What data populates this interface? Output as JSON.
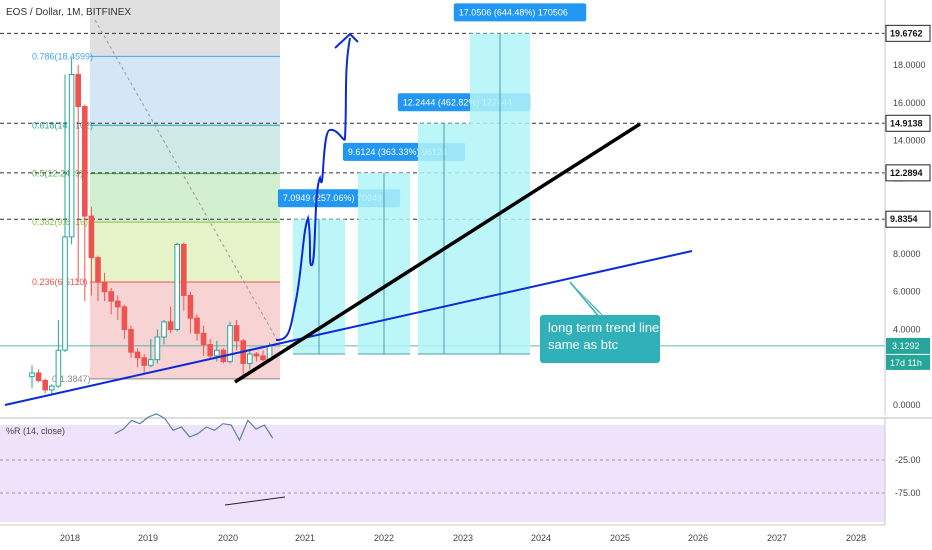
{
  "header": {
    "title": "EOS / Dollar, 1M, BITFINEX"
  },
  "indicator": {
    "label": "%R (14, close)",
    "levels": [
      "-25.00",
      "-75.00"
    ]
  },
  "colors": {
    "up": "#26a69a",
    "down": "#ef5350",
    "trend_blue": "#0b2bd6",
    "trend_black": "#000000",
    "tag_blue": "#2196f3",
    "cyan_box": "#b2f5f8",
    "note_bg": "#30b0b8",
    "wr_bg": "#efe3fb"
  },
  "annotation": {
    "line1": "long term trend line",
    "line2": "same as btc"
  },
  "price_tags": {
    "current": "3.1292",
    "countdown": "17d 11h"
  },
  "chart_data": {
    "type": "candlestick",
    "title": "EOS / Dollar, 1M, BITFINEX",
    "x_axis": {
      "type": "time",
      "tick_labels": [
        "2018",
        "2019",
        "2020",
        "2021",
        "2022",
        "2023",
        "2024",
        "2025",
        "2026",
        "2027",
        "2028"
      ]
    },
    "y_axis": {
      "range": [
        0,
        20
      ],
      "tick_labels": [
        "0.0000",
        "2.0000",
        "4.0000",
        "6.0000",
        "8.0000",
        "10.0000",
        "12.0000",
        "14.0000",
        "16.0000",
        "18.0000"
      ]
    },
    "candles": [
      {
        "t": "2017-07",
        "o": 1.5,
        "h": 2.1,
        "l": 0.9,
        "c": 1.7
      },
      {
        "t": "2017-08",
        "o": 1.7,
        "h": 1.9,
        "l": 1.2,
        "c": 1.3
      },
      {
        "t": "2017-09",
        "o": 1.3,
        "h": 1.4,
        "l": 0.6,
        "c": 0.8
      },
      {
        "t": "2017-10",
        "o": 0.8,
        "h": 1.1,
        "l": 0.5,
        "c": 1.0
      },
      {
        "t": "2017-11",
        "o": 1.0,
        "h": 4.5,
        "l": 0.9,
        "c": 2.9
      },
      {
        "t": "2017-12",
        "o": 2.9,
        "h": 17.5,
        "l": 2.8,
        "c": 8.9
      },
      {
        "t": "2018-01",
        "o": 8.9,
        "h": 18.4,
        "l": 8.5,
        "c": 17.5
      },
      {
        "t": "2018-02",
        "o": 17.5,
        "h": 18.0,
        "l": 6.5,
        "c": 15.8
      },
      {
        "t": "2018-03",
        "o": 15.8,
        "h": 15.9,
        "l": 5.5,
        "c": 10.0
      },
      {
        "t": "2018-04",
        "o": 10.0,
        "h": 10.5,
        "l": 5.8,
        "c": 7.8
      },
      {
        "t": "2018-05",
        "o": 7.8,
        "h": 7.9,
        "l": 5.5,
        "c": 6.5
      },
      {
        "t": "2018-06",
        "o": 6.5,
        "h": 7.0,
        "l": 5.5,
        "c": 6.0
      },
      {
        "t": "2018-07",
        "o": 6.0,
        "h": 6.2,
        "l": 4.8,
        "c": 5.5
      },
      {
        "t": "2018-08",
        "o": 5.5,
        "h": 5.8,
        "l": 4.5,
        "c": 5.2
      },
      {
        "t": "2018-09",
        "o": 5.2,
        "h": 5.3,
        "l": 3.5,
        "c": 4.0
      },
      {
        "t": "2018-10",
        "o": 4.0,
        "h": 4.2,
        "l": 2.5,
        "c": 2.8
      },
      {
        "t": "2018-11",
        "o": 2.8,
        "h": 3.0,
        "l": 2.0,
        "c": 2.5
      },
      {
        "t": "2018-12",
        "o": 2.5,
        "h": 2.7,
        "l": 1.6,
        "c": 2.1
      },
      {
        "t": "2019-01",
        "o": 2.1,
        "h": 3.5,
        "l": 2.0,
        "c": 2.4
      },
      {
        "t": "2019-02",
        "o": 2.4,
        "h": 4.0,
        "l": 2.2,
        "c": 3.6
      },
      {
        "t": "2019-03",
        "o": 3.6,
        "h": 4.5,
        "l": 3.2,
        "c": 4.4
      },
      {
        "t": "2019-04",
        "o": 4.4,
        "h": 5.2,
        "l": 3.8,
        "c": 4.0
      },
      {
        "t": "2019-05",
        "o": 4.0,
        "h": 8.6,
        "l": 3.9,
        "c": 8.5
      },
      {
        "t": "2019-06",
        "o": 8.5,
        "h": 8.6,
        "l": 5.0,
        "c": 5.8
      },
      {
        "t": "2019-07",
        "o": 5.8,
        "h": 6.0,
        "l": 3.8,
        "c": 4.6
      },
      {
        "t": "2019-08",
        "o": 4.6,
        "h": 4.8,
        "l": 3.4,
        "c": 3.8
      },
      {
        "t": "2019-09",
        "o": 3.8,
        "h": 4.2,
        "l": 2.6,
        "c": 3.2
      },
      {
        "t": "2019-10",
        "o": 3.2,
        "h": 3.5,
        "l": 2.4,
        "c": 2.6
      },
      {
        "t": "2019-11",
        "o": 2.6,
        "h": 3.4,
        "l": 2.3,
        "c": 2.9
      },
      {
        "t": "2019-12",
        "o": 2.9,
        "h": 3.0,
        "l": 2.2,
        "c": 2.3
      },
      {
        "t": "2020-01",
        "o": 2.3,
        "h": 4.4,
        "l": 2.2,
        "c": 4.2
      },
      {
        "t": "2020-02",
        "o": 4.2,
        "h": 4.5,
        "l": 2.9,
        "c": 3.4
      },
      {
        "t": "2020-03",
        "o": 3.4,
        "h": 3.5,
        "l": 1.6,
        "c": 2.2
      },
      {
        "t": "2020-04",
        "o": 2.2,
        "h": 2.9,
        "l": 1.9,
        "c": 2.7
      },
      {
        "t": "2020-05",
        "o": 2.7,
        "h": 2.8,
        "l": 2.3,
        "c": 2.6
      },
      {
        "t": "2020-06",
        "o": 2.6,
        "h": 2.9,
        "l": 2.3,
        "c": 2.4
      },
      {
        "t": "2020-07",
        "o": 2.4,
        "h": 3.3,
        "l": 2.3,
        "c": 3.13
      }
    ],
    "fibonacci": {
      "levels": [
        {
          "ratio": "0",
          "value": "1.3847",
          "label": "0(1.3847)",
          "color": "#888888",
          "fill": "#f8d3d3"
        },
        {
          "ratio": "0.236",
          "value": "6.5110",
          "label": "0.236(6.5110)",
          "color": "#ef5350",
          "fill": "#f8d3d3"
        },
        {
          "ratio": "0.382",
          "value": "9.6816",
          "label": "0.382(9.6816)",
          "color": "#8bc34a",
          "fill": "#e6f3c9"
        },
        {
          "ratio": "0.5",
          "value": "12.2469",
          "label": "0.5(12.2469)",
          "color": "#4caf50",
          "fill": "#d2efcf"
        },
        {
          "ratio": "0.618",
          "value": "14.8102",
          "label": "0.618(14.8102)",
          "color": "#26a69a",
          "fill": "#cfe9e6"
        },
        {
          "ratio": "0.786",
          "value": "18.4599",
          "label": "0.786(18.4599)",
          "color": "#42a5f5",
          "fill": "#d5e7f6"
        }
      ],
      "top_fill": "#e0e0e0"
    },
    "target_levels": [
      {
        "value": 9.8354,
        "label": "9.8354"
      },
      {
        "value": 12.2894,
        "label": "12.2894"
      },
      {
        "value": 14.9138,
        "label": "14.9138"
      },
      {
        "value": 19.6762,
        "label": "19.6762"
      }
    ],
    "current_price": 3.1292,
    "projections": [
      {
        "top": 9.8354,
        "label": "7.0949 (257.06%) 70949"
      },
      {
        "top": 12.2894,
        "label": "9.6124 (363.33%) 96124"
      },
      {
        "top": 14.9138,
        "label": "12.2444 (462.82%) 122444"
      },
      {
        "top": 19.6762,
        "label": "17.0506 (644.48%) 170506"
      }
    ],
    "williams_r": {
      "levels": [
        -25,
        -75
      ],
      "values": [
        -65,
        -72,
        -85,
        -80,
        -90,
        -95,
        -88,
        -70,
        -75,
        -60,
        -65,
        -75,
        -70,
        -80,
        -78,
        -55,
        -85,
        -72,
        -78,
        -58
      ]
    }
  }
}
